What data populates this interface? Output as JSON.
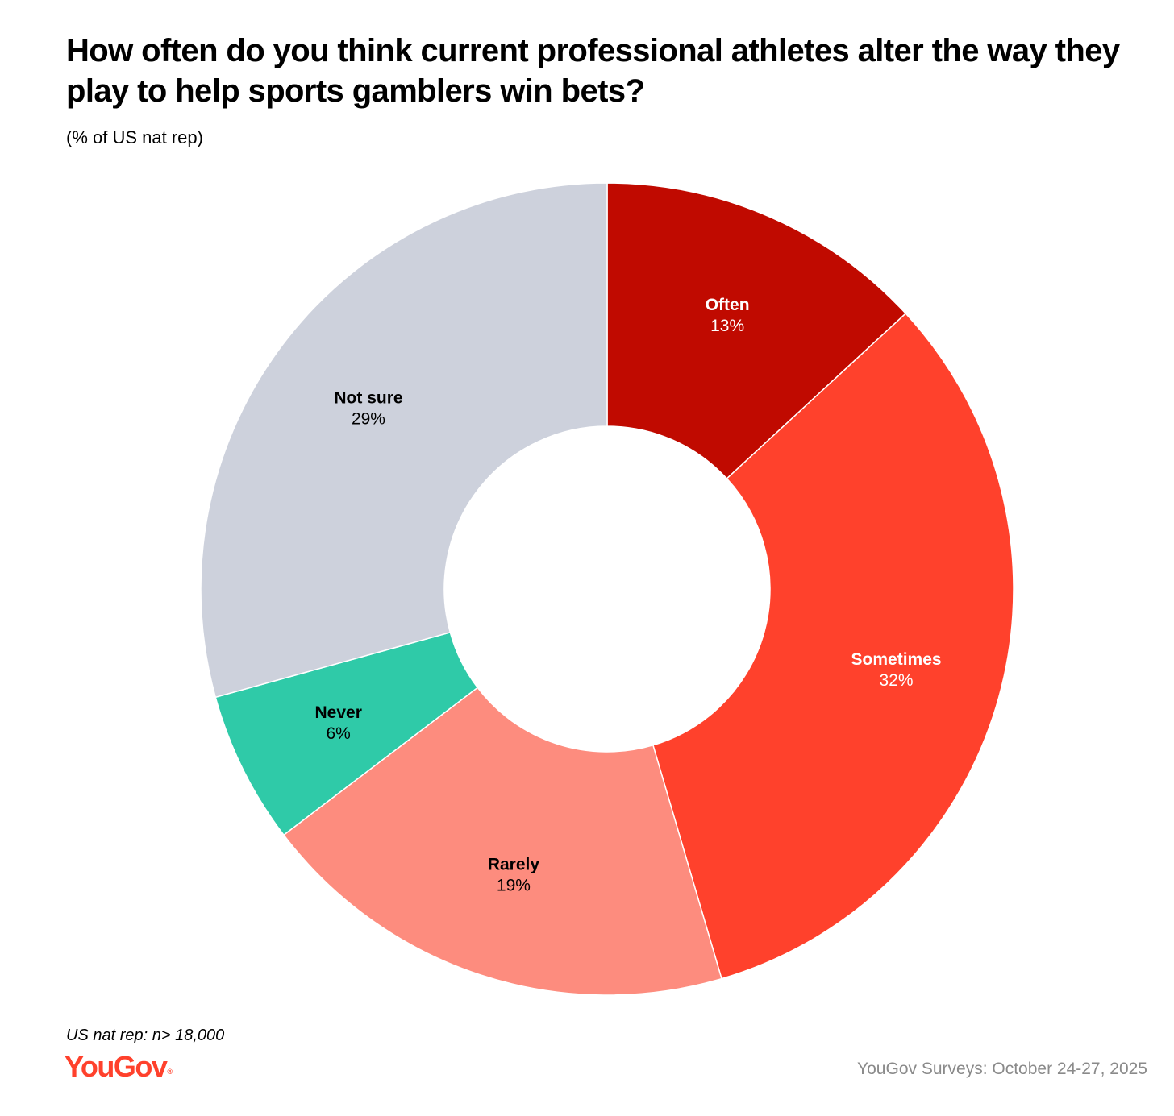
{
  "title": "How often do you think current professional athletes alter the way they play to help sports gamblers win bets?",
  "subtitle": "(% of US nat rep)",
  "footnote": "US nat rep: n> 18,000",
  "logo": {
    "text": "YouGov",
    "mark": "®",
    "color": "#ff412c"
  },
  "source": "YouGov Surveys: October 24-27, 2025",
  "chart_data": {
    "type": "pie",
    "variant": "donut",
    "title": "How often do you think current professional athletes alter the way they play to help sports gamblers win bets?",
    "subtitle": "(% of US nat rep)",
    "unit": "%",
    "start_angle_deg": 0,
    "direction": "clockwise",
    "slices": [
      {
        "label": "Often",
        "value": 13,
        "value_label": "13%",
        "color": "#c00a00",
        "label_color": "#ffffff"
      },
      {
        "label": "Sometimes",
        "value": 32,
        "value_label": "32%",
        "color": "#ff412c",
        "label_color": "#ffffff"
      },
      {
        "label": "Rarely",
        "value": 19,
        "value_label": "19%",
        "color": "#fd8c7e",
        "label_color": "#000000"
      },
      {
        "label": "Never",
        "value": 6,
        "value_label": "6%",
        "color": "#2fcaa8",
        "label_color": "#000000"
      },
      {
        "label": "Not sure",
        "value": 29,
        "value_label": "29%",
        "color": "#cdd1dc",
        "label_color": "#000000"
      }
    ]
  }
}
